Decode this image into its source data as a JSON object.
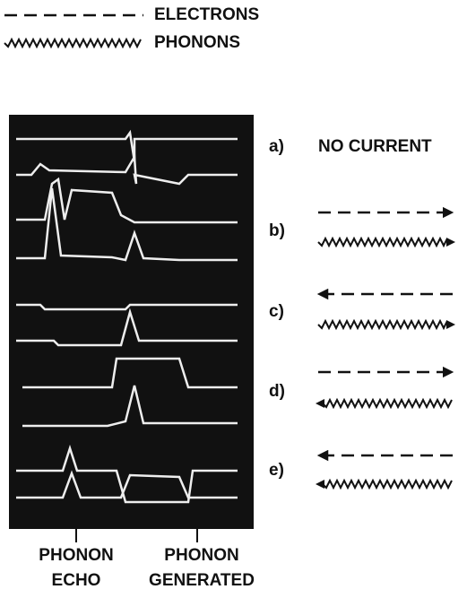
{
  "legend": [
    {
      "label": "ELECTRONS"
    },
    {
      "label": "PHONONS"
    }
  ],
  "cases": [
    {
      "label": "a)",
      "text": "NO CURRENT"
    },
    {
      "label": "b)"
    },
    {
      "label": "c)"
    },
    {
      "label": "d)"
    },
    {
      "label": "e)"
    }
  ],
  "annotations": [
    {
      "lines": [
        "PHONON",
        "ECHO"
      ]
    },
    {
      "lines": [
        "PHONON",
        "GENERATED"
      ]
    }
  ]
}
